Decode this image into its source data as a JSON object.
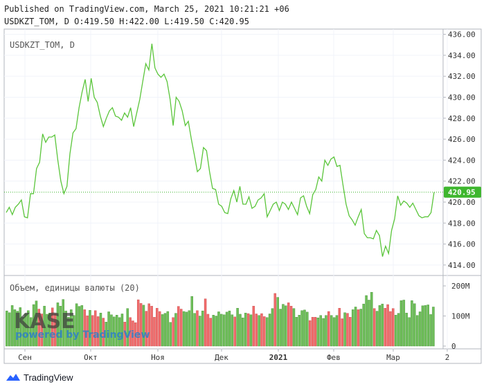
{
  "header": {
    "published": "Published on TradingView.com, March 25, 2021 10:21:21 +06",
    "ohlc": "USDKZT_TOM, D O:419.50 H:422.00 L:419.50 C:420.95"
  },
  "watermark": {
    "primary": "KASE",
    "secondary": "powered by TradingView"
  },
  "footer": {
    "brand": "TradingView",
    "icon": "tradingview-logo-icon"
  },
  "colors": {
    "price_line": "#5ac53a",
    "vol_up": "#6fbf5a",
    "vol_down": "#f06b6b",
    "last_price_bg": "#3eb62e"
  },
  "chart_data": [
    {
      "type": "line",
      "title": "USDKZT_TOM, D",
      "last_value": "420.95",
      "ylim": [
        413.0,
        436.5
      ],
      "y_ticks": [
        "436.00",
        "434.00",
        "432.00",
        "430.00",
        "428.00",
        "426.00",
        "424.00",
        "422.00",
        "420.00",
        "418.00",
        "416.00",
        "414.00"
      ],
      "x_ticks": [
        "Сен",
        "Окт",
        "Ноя",
        "Дек",
        "2021",
        "Фев",
        "Мар",
        "2"
      ],
      "series": [
        {
          "values": [
            419.0,
            419.5,
            418.8,
            419.5,
            419.8,
            420.2,
            418.6,
            418.5,
            420.8,
            420.8,
            423.2,
            423.8,
            426.5,
            425.7,
            426.2,
            426.2,
            426.4,
            424.0,
            422.0,
            420.8,
            421.5,
            424.6,
            426.6,
            427.0,
            429.0,
            430.5,
            431.7,
            429.6,
            431.8,
            430.0,
            429.5,
            428.2,
            427.2,
            428.0,
            428.7,
            429.0,
            428.2,
            428.1,
            427.8,
            428.5,
            428.1,
            429.0,
            427.2,
            428.5,
            429.8,
            431.5,
            433.2,
            432.6,
            435.1,
            432.8,
            432.2,
            431.9,
            432.2,
            431.5,
            429.8,
            427.3,
            430.0,
            429.6,
            428.7,
            427.3,
            427.7,
            426.0,
            424.5,
            422.9,
            423.2,
            425.2,
            424.9,
            422.9,
            421.3,
            421.2,
            419.8,
            419.6,
            419.0,
            418.9,
            420.3,
            421.1,
            420.0,
            421.5,
            419.8,
            419.8,
            420.5,
            419.4,
            419.6,
            420.2,
            420.4,
            420.8,
            418.6,
            419.2,
            419.8,
            420.0,
            419.2,
            420.0,
            419.8,
            419.3,
            420.0,
            419.4,
            418.8,
            420.4,
            420.6,
            419.6,
            418.9,
            420.7,
            421.2,
            422.4,
            422.0,
            424.0,
            423.5,
            424.1,
            424.3,
            423.4,
            423.5,
            421.6,
            419.8,
            418.7,
            418.3,
            417.8,
            418.6,
            419.3,
            417.0,
            416.6,
            416.6,
            416.5,
            417.3,
            416.8,
            414.8,
            415.8,
            415.1,
            417.3,
            418.4,
            420.6,
            419.7,
            420.1,
            419.9,
            419.5,
            419.9,
            419.3,
            418.7,
            418.5,
            418.6,
            418.6,
            419.0,
            420.95
          ]
        }
      ]
    },
    {
      "type": "bar",
      "title": "Объем, единицы валюты (20)",
      "ylim": [
        0,
        230
      ],
      "y_ticks": [
        "200M",
        "100M",
        "0"
      ],
      "down_indices": [
        12,
        13,
        17,
        18,
        29,
        30,
        32,
        33,
        34,
        36,
        44,
        46,
        47,
        48,
        49,
        50,
        52,
        53,
        54,
        55,
        56,
        57,
        62,
        64,
        65,
        71,
        74,
        75,
        76,
        85,
        90,
        92,
        93,
        95,
        96,
        100,
        105,
        106,
        113,
        114,
        115,
        120,
        124,
        125,
        127,
        128,
        131,
        137,
        141,
        142,
        143,
        144
      ],
      "values": [
        117,
        111,
        135,
        121,
        116,
        128,
        96,
        108,
        118,
        95,
        138,
        150,
        123,
        107,
        133,
        106,
        110,
        127,
        108,
        144,
        133,
        155,
        117,
        96,
        121,
        102,
        141,
        132,
        135,
        121,
        101,
        119,
        102,
        118,
        98,
        110,
        93,
        80,
        114,
        104,
        97,
        103,
        95,
        107,
        80,
        125,
        95,
        84,
        78,
        154,
        142,
        136,
        116,
        141,
        133,
        96,
        126,
        115,
        105,
        109,
        115,
        79,
        95,
        109,
        132,
        123,
        115,
        113,
        118,
        165,
        109,
        118,
        100,
        117,
        157,
        106,
        93,
        103,
        100,
        114,
        106,
        104,
        113,
        117,
        104,
        97,
        126,
        106,
        94,
        110,
        108,
        104,
        133,
        107,
        102,
        108,
        98,
        95,
        107,
        125,
        175,
        162,
        123,
        139,
        134,
        144,
        133,
        125,
        96,
        103,
        118,
        120,
        113,
        85,
        96,
        96,
        94,
        102,
        92,
        102,
        115,
        102,
        95,
        102,
        126,
        91,
        111,
        109,
        96,
        121,
        130,
        121,
        123,
        140,
        168,
        153,
        179,
        125,
        116,
        135,
        140,
        126,
        138,
        115,
        125,
        103,
        109,
        151,
        153,
        110,
        95,
        151,
        141,
        102,
        114,
        134,
        135,
        137,
        105,
        130
      ]
    }
  ]
}
